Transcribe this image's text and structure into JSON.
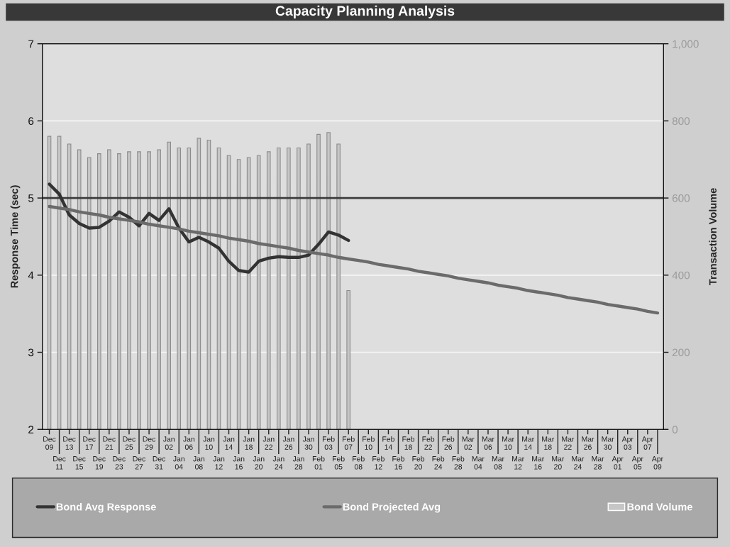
{
  "chart_data": {
    "type": "line",
    "title": "Capacity Planning Analysis",
    "ylabel": "Response Time (sec)",
    "y2label": "Transaction Volume",
    "categories": [
      "Dec 09",
      "Dec 11",
      "Dec 13",
      "Dec 15",
      "Dec 17",
      "Dec 19",
      "Dec 21",
      "Dec 23",
      "Dec 25",
      "Dec 27",
      "Dec 29",
      "Dec 31",
      "Jan 02",
      "Jan 04",
      "Jan 06",
      "Jan 08",
      "Jan 10",
      "Jan 12",
      "Jan 14",
      "Jan 16",
      "Jan 18",
      "Jan 20",
      "Jan 22",
      "Jan 24",
      "Jan 26",
      "Jan 28",
      "Jan 30",
      "Feb 01",
      "Feb 03",
      "Feb 05",
      "Feb 07",
      "Feb 08",
      "Feb 10",
      "Feb 12",
      "Feb 14",
      "Feb 16",
      "Feb 18",
      "Feb 20",
      "Feb 22",
      "Feb 24",
      "Feb 26",
      "Feb 28",
      "Mar 02",
      "Mar 04",
      "Mar 06",
      "Mar 08",
      "Mar 10",
      "Mar 12",
      "Mar 14",
      "Mar 16",
      "Mar 18",
      "Mar 20",
      "Mar 22",
      "Mar 24",
      "Mar 26",
      "Mar 28",
      "Mar 30",
      "Apr 01",
      "Apr 03",
      "Apr 05",
      "Apr 07",
      "Apr 09"
    ],
    "series": [
      {
        "name": "Bond Avg Response",
        "color": "#333333",
        "values": [
          5.18,
          5.05,
          4.78,
          4.67,
          4.61,
          4.62,
          4.7,
          4.82,
          4.75,
          4.64,
          4.8,
          4.71,
          4.86,
          4.61,
          4.43,
          4.49,
          4.43,
          4.35,
          4.18,
          4.06,
          4.04,
          4.18,
          4.22,
          4.24,
          4.23,
          4.23,
          4.26,
          4.4,
          4.56,
          4.52,
          4.45,
          null,
          null,
          null,
          null,
          null,
          null,
          null,
          null,
          null,
          null,
          null,
          null,
          null,
          null,
          null,
          null,
          null,
          null,
          null,
          null,
          null,
          null,
          null,
          null,
          null,
          null,
          null,
          null,
          null,
          null,
          null
        ]
      },
      {
        "name": "Bond Projected Avg",
        "color": "#6b6b6b",
        "values": [
          4.89,
          4.87,
          4.85,
          4.82,
          4.8,
          4.78,
          4.75,
          4.73,
          4.71,
          4.69,
          4.66,
          4.64,
          4.62,
          4.6,
          4.57,
          4.55,
          4.53,
          4.51,
          4.48,
          4.46,
          4.44,
          4.41,
          4.39,
          4.37,
          4.35,
          4.32,
          4.3,
          4.28,
          4.26,
          4.23,
          4.21,
          4.19,
          4.17,
          4.14,
          4.12,
          4.1,
          4.08,
          4.05,
          4.03,
          4.01,
          3.99,
          3.96,
          3.94,
          3.92,
          3.9,
          3.87,
          3.85,
          3.83,
          3.8,
          3.78,
          3.76,
          3.74,
          3.71,
          3.69,
          3.67,
          3.65,
          3.62,
          3.6,
          3.58,
          3.56,
          3.53,
          3.51
        ]
      },
      {
        "name": "Bond Volume",
        "type": "bar",
        "axis": "y2",
        "color": "#c6c6c6",
        "values": [
          760,
          760,
          740,
          725,
          705,
          715,
          725,
          715,
          720,
          720,
          720,
          725,
          745,
          730,
          730,
          755,
          750,
          730,
          710,
          700,
          705,
          710,
          720,
          730,
          730,
          730,
          740,
          765,
          770,
          740,
          360,
          null,
          null,
          null,
          null,
          null,
          null,
          null,
          null,
          null,
          null,
          null,
          null,
          null,
          null,
          null,
          null,
          null,
          null,
          null,
          null,
          null,
          null,
          null,
          null,
          null,
          null,
          null,
          null,
          null,
          null,
          null
        ]
      }
    ],
    "ylim": [
      2,
      7
    ],
    "yticks": [
      2,
      3,
      4,
      5,
      6,
      7
    ],
    "y2lim": [
      0,
      1000
    ],
    "y2ticks": [
      0,
      200,
      400,
      600,
      800,
      {
        "value": 1000,
        "label": "1,000"
      }
    ],
    "ref_lines": [
      {
        "axis": "y",
        "value": 5,
        "color": "#3c3c3c"
      }
    ],
    "grid": "y",
    "legend": "bottom"
  }
}
